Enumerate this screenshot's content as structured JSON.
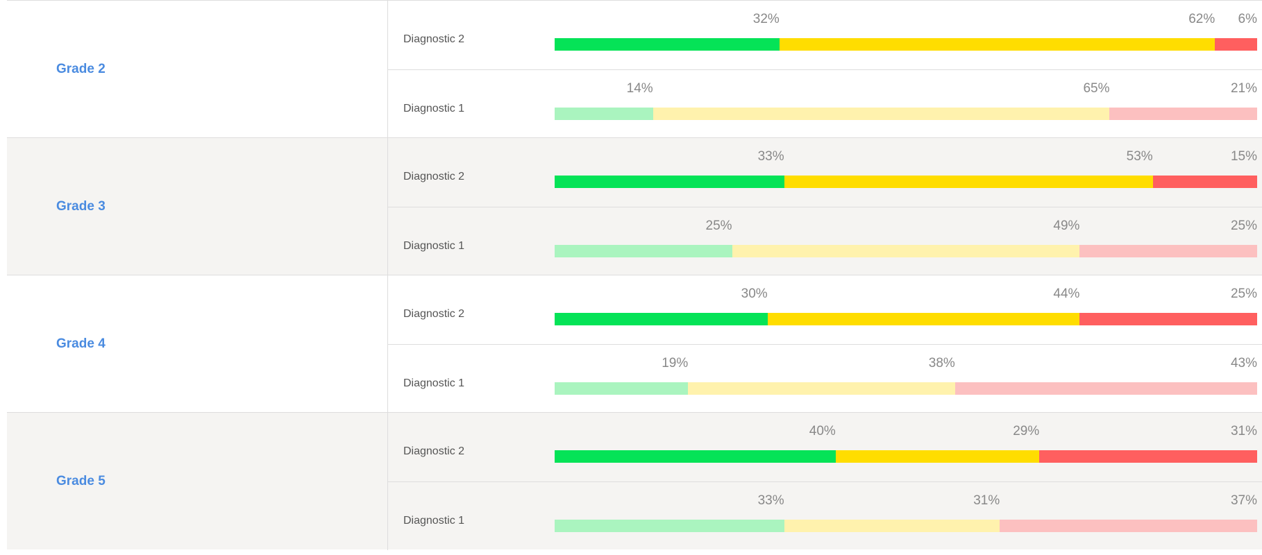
{
  "colors": {
    "Diagnostic 2": [
      "#05e357",
      "#ffdd00",
      "#ff5f5f"
    ],
    "Diagnostic 1": [
      "#aaf4bf",
      "#fff2ad",
      "#fcc0c0"
    ]
  },
  "grades": [
    {
      "label": "Grade 2",
      "shaded": false,
      "diagnostics": [
        {
          "label": "Diagnostic 2",
          "values": [
            32,
            62,
            6
          ],
          "value_labels": [
            "32%",
            "62%",
            "6%"
          ]
        },
        {
          "label": "Diagnostic 1",
          "values": [
            14,
            65,
            21
          ],
          "value_labels": [
            "14%",
            "65%",
            "21%"
          ]
        }
      ]
    },
    {
      "label": "Grade 3",
      "shaded": true,
      "diagnostics": [
        {
          "label": "Diagnostic 2",
          "values": [
            33,
            53,
            15
          ],
          "value_labels": [
            "33%",
            "53%",
            "15%"
          ]
        },
        {
          "label": "Diagnostic 1",
          "values": [
            25,
            49,
            25
          ],
          "value_labels": [
            "25%",
            "49%",
            "25%"
          ]
        }
      ]
    },
    {
      "label": "Grade 4",
      "shaded": false,
      "diagnostics": [
        {
          "label": "Diagnostic 2",
          "values": [
            30,
            44,
            25
          ],
          "value_labels": [
            "30%",
            "44%",
            "25%"
          ]
        },
        {
          "label": "Diagnostic 1",
          "values": [
            19,
            38,
            43
          ],
          "value_labels": [
            "19%",
            "38%",
            "43%"
          ]
        }
      ]
    },
    {
      "label": "Grade 5",
      "shaded": true,
      "diagnostics": [
        {
          "label": "Diagnostic 2",
          "values": [
            40,
            29,
            31
          ],
          "value_labels": [
            "40%",
            "29%",
            "31%"
          ]
        },
        {
          "label": "Diagnostic 1",
          "values": [
            33,
            31,
            37
          ],
          "value_labels": [
            "33%",
            "31%",
            "37%"
          ]
        }
      ]
    }
  ]
}
